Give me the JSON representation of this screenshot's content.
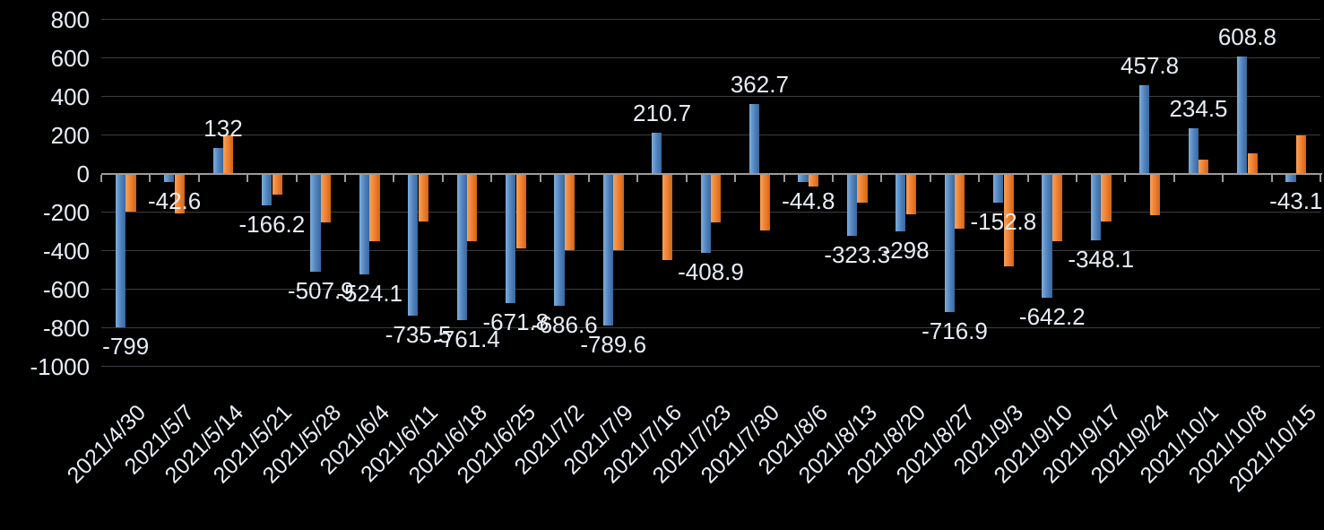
{
  "chart_data": {
    "type": "bar",
    "title": "",
    "categories": [
      "2021/4/30",
      "2021/5/7",
      "2021/5/14",
      "2021/5/21",
      "2021/5/28",
      "2021/6/4",
      "2021/6/11",
      "2021/6/18",
      "2021/6/25",
      "2021/7/2",
      "2021/7/9",
      "2021/7/16",
      "2021/7/23",
      "2021/7/30",
      "2021/8/6",
      "2021/8/13",
      "2021/8/20",
      "2021/8/27",
      "2021/9/3",
      "2021/9/10",
      "2021/9/17",
      "2021/9/24",
      "2021/10/1",
      "2021/10/8",
      "2021/10/15"
    ],
    "series": [
      {
        "name": "blue-series",
        "color": "#4f81bd",
        "values": [
          -799,
          -42.6,
          132,
          -166.2,
          -507.9,
          -524.1,
          -735.5,
          -761.4,
          -671.8,
          -686.6,
          -789.6,
          210.7,
          -408.9,
          362.7,
          -44.8,
          -323.3,
          -298,
          -716.9,
          -152.8,
          -642.2,
          -348.1,
          457.8,
          234.5,
          608.8,
          -43.1
        ]
      },
      {
        "name": "orange-series",
        "color": "#ed7d31",
        "values": [
          -197,
          -207,
          199,
          -107,
          -254,
          -350,
          -250,
          -349,
          -386,
          -398,
          -398,
          -448,
          -252,
          -296,
          -68,
          -149,
          -212,
          -285,
          -481,
          -352,
          -248,
          -214,
          74,
          104,
          197
        ]
      }
    ],
    "data_labels": {
      "series": "blue-series",
      "texts": [
        "-799",
        "-42.6",
        "132",
        "-166.2",
        "-507.9",
        "-524.1",
        "-735.5",
        "-761.4",
        "-671.8",
        "-686.6",
        "-789.6",
        "210.7",
        "-408.9",
        "362.7",
        "-44.8",
        "-323.3",
        "-298",
        "-716.9",
        "-152.8",
        "-642.2",
        "-348.1",
        "457.8",
        "234.5",
        "608.8",
        "-43.1"
      ]
    },
    "y_axis": {
      "ticks": [
        800,
        600,
        400,
        200,
        0,
        -200,
        -400,
        -600,
        -800,
        -1000
      ],
      "tick_labels": [
        "800",
        "600",
        "400",
        "200",
        "0",
        "-200",
        "-400",
        "-600",
        "-800",
        "-1000"
      ],
      "min": -1000,
      "max": 800
    },
    "x_axis": {
      "label_rotation_deg": -45
    },
    "grid": true,
    "legend": "none",
    "colors": {
      "background": "#000000",
      "gridline": "#3d3d41",
      "axis_line": "#9b9b9b",
      "text": "#e8edf5"
    }
  }
}
